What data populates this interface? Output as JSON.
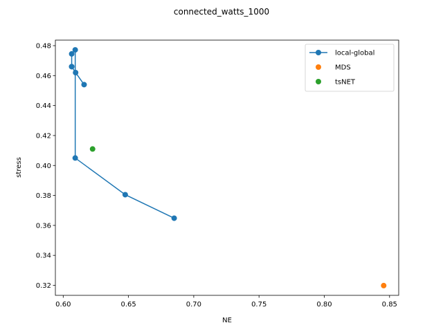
{
  "chart_data": {
    "type": "scatter",
    "title": "connected_watts_1000",
    "xlabel": "NE",
    "ylabel": "stress",
    "xlim": [
      0.594,
      0.857
    ],
    "ylim": [
      0.3133,
      0.4837
    ],
    "xticks": [
      "0.60",
      "0.65",
      "0.70",
      "0.75",
      "0.80",
      "0.85"
    ],
    "yticks": [
      "0.32",
      "0.34",
      "0.36",
      "0.38",
      "0.40",
      "0.42",
      "0.44",
      "0.46",
      "0.48"
    ],
    "grid": false,
    "legend_position": "top-right",
    "series": [
      {
        "name": "local-global",
        "color": "#1f77b4",
        "style": "line-marker",
        "points": [
          {
            "x": 0.616,
            "y": 0.454
          },
          {
            "x": 0.6095,
            "y": 0.462
          },
          {
            "x": 0.6065,
            "y": 0.466
          },
          {
            "x": 0.6065,
            "y": 0.466
          },
          {
            "x": 0.6065,
            "y": 0.4745
          },
          {
            "x": 0.6092,
            "y": 0.4772
          },
          {
            "x": 0.6092,
            "y": 0.405
          },
          {
            "x": 0.6475,
            "y": 0.3805
          },
          {
            "x": 0.685,
            "y": 0.3648
          }
        ]
      },
      {
        "name": "MDS",
        "color": "#ff7f0e",
        "style": "marker",
        "points": [
          {
            "x": 0.8455,
            "y": 0.3198
          }
        ]
      },
      {
        "name": "tsNET",
        "color": "#2ca02c",
        "style": "marker",
        "points": [
          {
            "x": 0.6225,
            "y": 0.411
          }
        ]
      }
    ]
  }
}
